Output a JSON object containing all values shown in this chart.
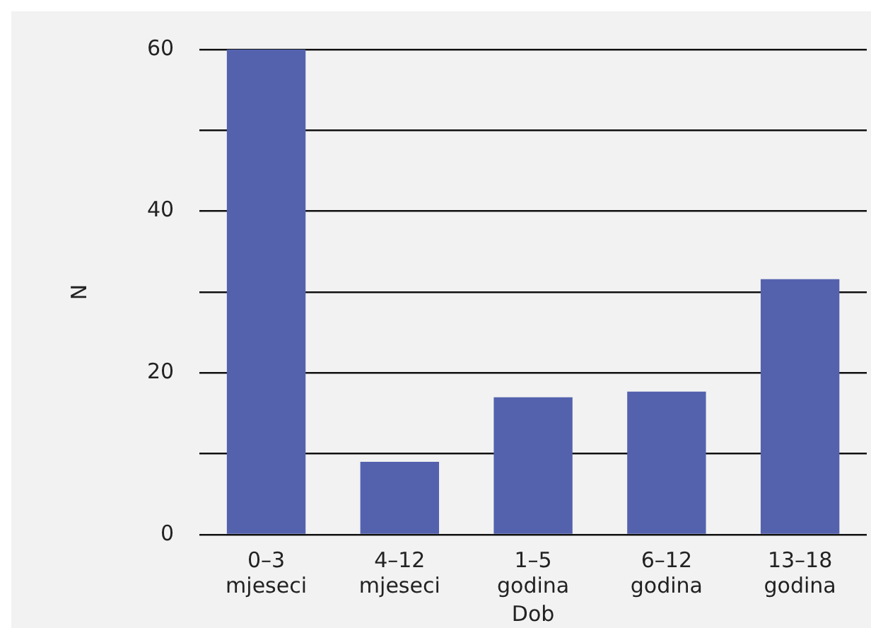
{
  "chart_data": {
    "type": "bar",
    "xlabel": "Dob",
    "ylabel": "N",
    "categories": [
      "0–3 mjeseci",
      "4–12 mjeseci",
      "1–5 godina",
      "6–12 godina",
      "13–18 godina"
    ],
    "values": [
      60,
      9,
      17,
      17.7,
      31.6
    ],
    "color": "#5462ae",
    "ylim": [
      0,
      60
    ],
    "yticks": [
      0,
      {
        "value": 10,
        "label": null
      },
      20,
      {
        "value": 30,
        "label": null
      },
      40,
      {
        "value": 50,
        "label": null
      },
      60
    ],
    "grid": "y",
    "legend": false
  }
}
